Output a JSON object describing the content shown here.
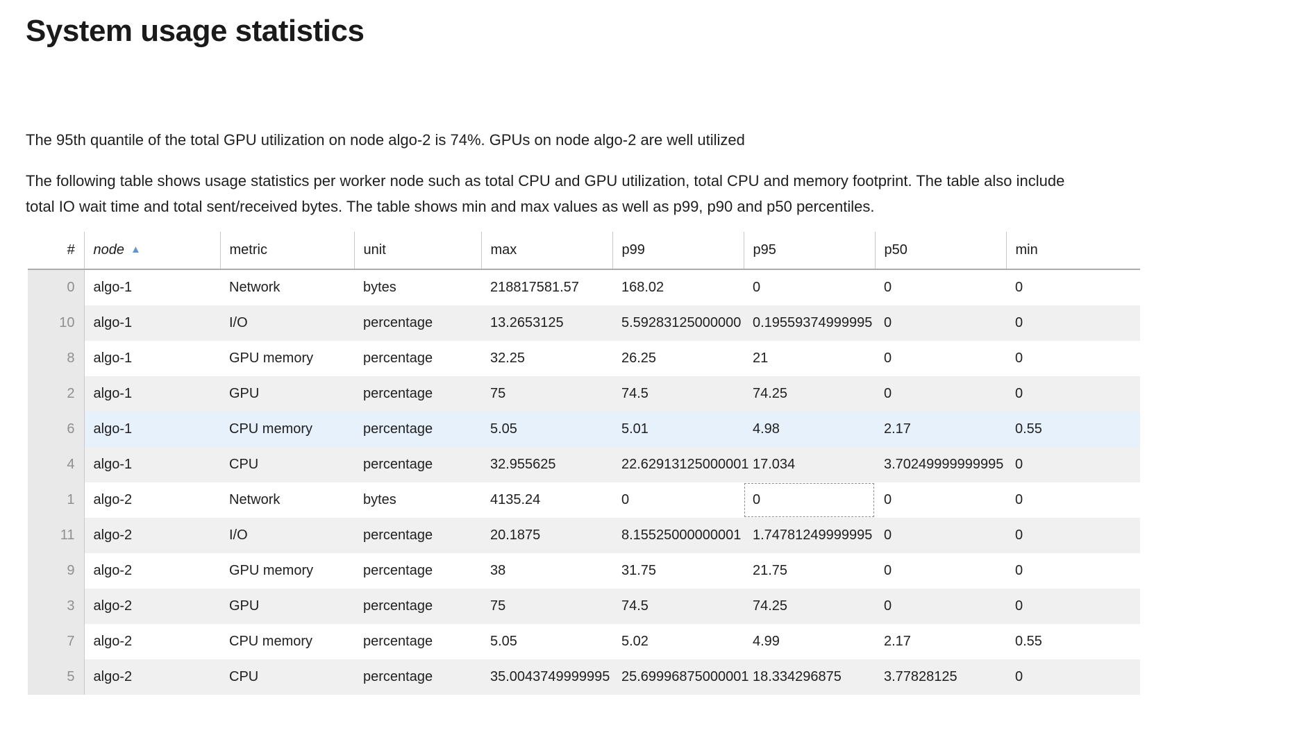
{
  "page": {
    "title": "System usage statistics"
  },
  "paragraphs": {
    "summary": "The 95th quantile of the total GPU utilization on node algo-2 is 74%. GPUs on node algo-2 are well utilized",
    "description": "The following table shows usage statistics per worker node such as total CPU and GPU utilization, total CPU and memory footprint. The table also include total IO wait time and total sent/received bytes. The table shows min and max values as well as p99, p90 and p50 percentiles."
  },
  "icons": {
    "sort_ascending": "▲"
  },
  "colors": {
    "sort_arrow": "#6195d6",
    "row_highlight": "#e6f1fb",
    "row_alt": "#f0f0f0",
    "index_column_bg": "#e9e9e9"
  },
  "table": {
    "columns": [
      {
        "key": "index",
        "label": "#"
      },
      {
        "key": "node",
        "label": "node"
      },
      {
        "key": "metric",
        "label": "metric"
      },
      {
        "key": "unit",
        "label": "unit"
      },
      {
        "key": "max",
        "label": "max"
      },
      {
        "key": "p99",
        "label": "p99"
      },
      {
        "key": "p95",
        "label": "p95"
      },
      {
        "key": "p50",
        "label": "p50"
      },
      {
        "key": "min",
        "label": "min"
      }
    ],
    "sort": {
      "column": "node",
      "direction": "ascending"
    },
    "rows": [
      {
        "index": "0",
        "node": "algo-1",
        "metric": "Network",
        "unit": "bytes",
        "max": "218817581.57",
        "p99": "168.02",
        "p95": "0",
        "p50": "0",
        "min": "0"
      },
      {
        "index": "10",
        "node": "algo-1",
        "metric": "I/O",
        "unit": "percentage",
        "max": "13.2653125",
        "p99": "5.59283125000000",
        "p95": "0.19559374999995",
        "p50": "0",
        "min": "0"
      },
      {
        "index": "8",
        "node": "algo-1",
        "metric": "GPU memory",
        "unit": "percentage",
        "max": "32.25",
        "p99": "26.25",
        "p95": "21",
        "p50": "0",
        "min": "0"
      },
      {
        "index": "2",
        "node": "algo-1",
        "metric": "GPU",
        "unit": "percentage",
        "max": "75",
        "p99": "74.5",
        "p95": "74.25",
        "p50": "0",
        "min": "0"
      },
      {
        "index": "6",
        "node": "algo-1",
        "metric": "CPU memory",
        "unit": "percentage",
        "max": "5.05",
        "p99": "5.01",
        "p95": "4.98",
        "p50": "2.17",
        "min": "0.55"
      },
      {
        "index": "4",
        "node": "algo-1",
        "metric": "CPU",
        "unit": "percentage",
        "max": "32.955625",
        "p99": "22.62913125000001",
        "p95": "17.034",
        "p50": "3.70249999999995",
        "min": "0"
      },
      {
        "index": "1",
        "node": "algo-2",
        "metric": "Network",
        "unit": "bytes",
        "max": "4135.24",
        "p99": "0",
        "p95": "0",
        "p50": "0",
        "min": "0"
      },
      {
        "index": "11",
        "node": "algo-2",
        "metric": "I/O",
        "unit": "percentage",
        "max": "20.1875",
        "p99": "8.15525000000001",
        "p95": "1.74781249999995",
        "p50": "0",
        "min": "0"
      },
      {
        "index": "9",
        "node": "algo-2",
        "metric": "GPU memory",
        "unit": "percentage",
        "max": "38",
        "p99": "31.75",
        "p95": "21.75",
        "p50": "0",
        "min": "0"
      },
      {
        "index": "3",
        "node": "algo-2",
        "metric": "GPU",
        "unit": "percentage",
        "max": "75",
        "p99": "74.5",
        "p95": "74.25",
        "p50": "0",
        "min": "0"
      },
      {
        "index": "7",
        "node": "algo-2",
        "metric": "CPU memory",
        "unit": "percentage",
        "max": "5.05",
        "p99": "5.02",
        "p95": "4.99",
        "p50": "2.17",
        "min": "0.55"
      },
      {
        "index": "5",
        "node": "algo-2",
        "metric": "CPU",
        "unit": "percentage",
        "max": "35.0043749999995",
        "p99": "25.69996875000001",
        "p95": "18.334296875",
        "p50": "3.77828125",
        "min": "0"
      }
    ],
    "selection": {
      "highlighted_row": 4,
      "focused_cell": {
        "row": 6,
        "column": "p95"
      }
    }
  }
}
